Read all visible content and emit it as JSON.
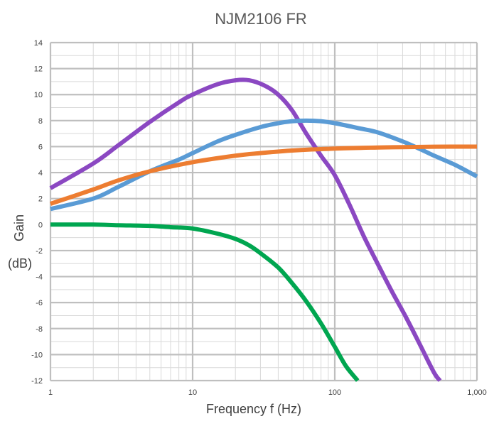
{
  "chart_data": {
    "type": "line",
    "title": "NJM2106 FR",
    "xlabel": "Frequency f (Hz)",
    "ylabel": "Gain",
    "ylabel_unit": "(dB)",
    "xscale": "log",
    "xlim": [
      1,
      1000
    ],
    "ylim": [
      -12,
      14
    ],
    "x_ticks": [
      1,
      10,
      100,
      1000
    ],
    "x_tick_labels": [
      "1",
      "10",
      "100",
      "1,000"
    ],
    "y_ticks": [
      -12,
      -10,
      -8,
      -6,
      -4,
      -2,
      0,
      2,
      4,
      6,
      8,
      10,
      12,
      14
    ],
    "grid": true,
    "legend": "none",
    "series": [
      {
        "color": "#8b48c2",
        "x": [
          1,
          2,
          3,
          5,
          8,
          10,
          15,
          20,
          25,
          32,
          40,
          50,
          63,
          80,
          100,
          126,
          160,
          200,
          251,
          316,
          400,
          500,
          550
        ],
        "y": [
          2.8,
          4.7,
          6.1,
          7.9,
          9.4,
          10.0,
          10.8,
          11.1,
          11.1,
          10.7,
          10.0,
          8.8,
          7.0,
          5.3,
          3.8,
          1.6,
          -0.9,
          -3.0,
          -5.1,
          -7.1,
          -9.3,
          -11.4,
          -12
        ]
      },
      {
        "color": "#5a9bd5",
        "x": [
          1,
          2,
          3,
          5,
          8,
          10,
          15,
          20,
          30,
          40,
          50,
          63,
          80,
          100,
          150,
          200,
          300,
          400,
          500,
          700,
          1000
        ],
        "y": [
          1.2,
          2.0,
          2.9,
          4.1,
          5.0,
          5.5,
          6.4,
          6.9,
          7.5,
          7.8,
          7.95,
          8.0,
          7.95,
          7.8,
          7.4,
          7.1,
          6.4,
          5.8,
          5.3,
          4.6,
          3.7
        ]
      },
      {
        "color": "#ed7d31",
        "x": [
          1,
          2,
          3,
          5,
          10,
          20,
          30,
          50,
          100,
          200,
          300,
          500,
          1000
        ],
        "y": [
          1.6,
          2.7,
          3.4,
          4.1,
          4.8,
          5.3,
          5.5,
          5.7,
          5.85,
          5.93,
          5.96,
          5.99,
          6.0
        ]
      },
      {
        "color": "#00a650",
        "x": [
          1,
          2,
          3,
          5,
          7,
          10,
          15,
          20,
          25,
          30,
          40,
          50,
          63,
          80,
          100,
          120,
          145
        ],
        "y": [
          0.0,
          0.0,
          -0.05,
          -0.1,
          -0.2,
          -0.3,
          -0.7,
          -1.1,
          -1.6,
          -2.2,
          -3.3,
          -4.5,
          -5.9,
          -7.6,
          -9.4,
          -10.9,
          -12
        ]
      }
    ]
  }
}
